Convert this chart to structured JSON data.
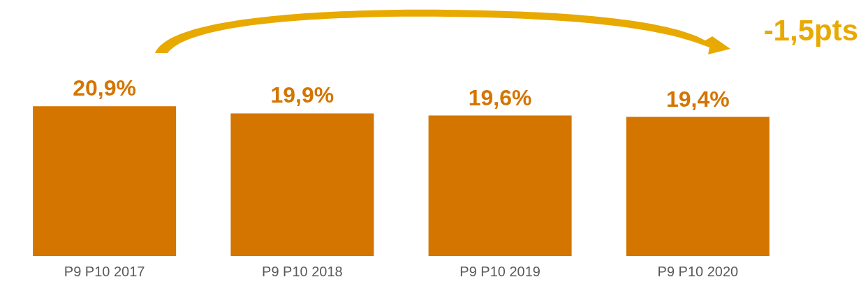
{
  "chart_data": {
    "type": "bar",
    "categories": [
      "P9 P10 2017",
      "P9 P10 2018",
      "P9 P10 2019",
      "P9 P10 2020"
    ],
    "values": [
      20.9,
      19.9,
      19.6,
      19.4
    ],
    "value_labels": [
      "20,9%",
      "19,9%",
      "19,6%",
      "19,4%"
    ],
    "color": "#d47500",
    "annotations": [
      "-1,5pts"
    ]
  }
}
